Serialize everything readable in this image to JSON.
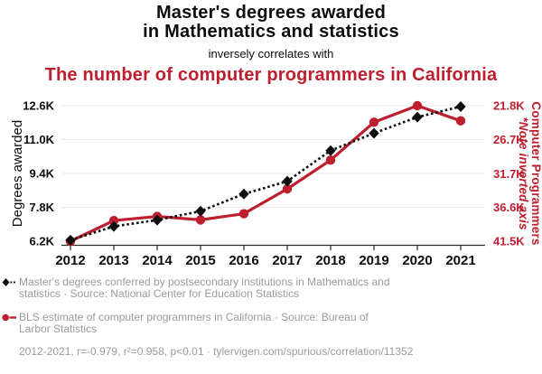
{
  "header": {
    "title_line1": "Master's degrees awarded",
    "title_line2": "in Mathematics and statistics",
    "subtitle": "inversely correlates with",
    "title2": "The number of computer programmers in California"
  },
  "colors": {
    "accent_red": "#be1e2d",
    "series_black": "#0d0d0d",
    "legend_gray": "#9b9b9b",
    "gridline": "#ebebeb",
    "axis_line": "#2b2b2b"
  },
  "chart_data": {
    "type": "line",
    "title": "Master's degrees awarded in Mathematics and statistics inversely correlates with The number of computer programmers in California",
    "x": [
      2012,
      2013,
      2014,
      2015,
      2016,
      2017,
      2018,
      2019,
      2020,
      2021
    ],
    "series": [
      {
        "key": "degrees",
        "name": "Master's degrees conferred in Mathematics and statistics",
        "axis": "left",
        "color": "#0d0d0d",
        "line_style": "dotted",
        "marker": "diamond",
        "values": [
          6250,
          6900,
          7200,
          7620,
          8430,
          9030,
          10480,
          11300,
          12060,
          12560
        ]
      },
      {
        "key": "programmers",
        "name": "BLS estimate of computer programmers in California",
        "axis": "right",
        "color": "#be1e2d",
        "line_style": "solid",
        "marker": "circle",
        "values": [
          41500,
          38500,
          37900,
          38400,
          37500,
          33900,
          29700,
          24200,
          21800,
          24000
        ]
      }
    ],
    "left_axis": {
      "label": "Degrees awarded",
      "range": [
        6200,
        12600
      ],
      "ticks": [
        {
          "label": "12.6K",
          "value": 12600
        },
        {
          "label": "11.0K",
          "value": 11000
        },
        {
          "label": "9.4K",
          "value": 9400
        },
        {
          "label": "7.8K",
          "value": 7800
        },
        {
          "label": "6.2K",
          "value": 6200
        }
      ]
    },
    "right_axis": {
      "label": "Computer Programmers",
      "note": "*Note inverted axis",
      "inverted": true,
      "range": [
        21800,
        41500
      ],
      "ticks": [
        {
          "label": "21.8K",
          "value": 21800
        },
        {
          "label": "26.7K",
          "value": 26700
        },
        {
          "label": "31.7K",
          "value": 31700
        },
        {
          "label": "36.6K",
          "value": 36600
        },
        {
          "label": "41.5K",
          "value": 41500
        }
      ]
    },
    "grid": true,
    "legend_position": "bottom"
  },
  "legend": {
    "items": [
      {
        "key": "degrees",
        "lines": [
          "Master's degrees conferred by postsecondary institutions in Mathematics and",
          "statistics · Source: National Center for Education Statistics"
        ]
      },
      {
        "key": "programmers",
        "lines": [
          "BLS estimate of computer programmers in California · Source: Bureau of",
          "Larbor Statistics"
        ]
      }
    ],
    "footer": "2012-2021, r=-0.979, r²=0.958, p<0.01 · tylervigen.com/spurious/correlation/11352"
  }
}
